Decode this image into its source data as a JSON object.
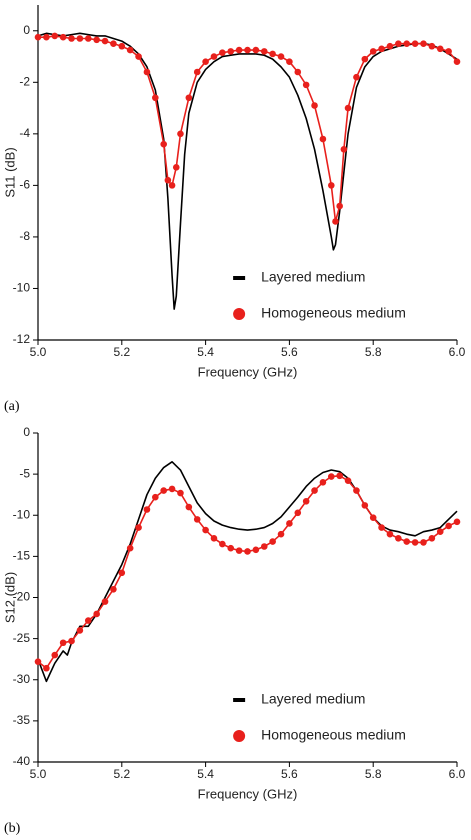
{
  "chart_data": [
    {
      "type": "line",
      "panel_label": "(a)",
      "x_label": "Frequency (GHz)",
      "y_label": "S11 (dB)",
      "xlim": [
        5.0,
        6.0
      ],
      "xticks": [
        {
          "value": 5.0,
          "label": "5.0"
        },
        5.2,
        5.4,
        5.6,
        5.8,
        {
          "value": 6.0,
          "label": "6.0"
        }
      ],
      "ylim": [
        -12,
        1
      ],
      "yticks": [
        0,
        -2,
        -4,
        -6,
        -8,
        -10,
        -12
      ],
      "legend": "lower right",
      "series": [
        {
          "name": "Layered medium",
          "color": "#000000",
          "markers": false,
          "x": [
            5.0,
            5.02,
            5.04,
            5.06,
            5.08,
            5.1,
            5.12,
            5.14,
            5.16,
            5.18,
            5.2,
            5.22,
            5.24,
            5.26,
            5.28,
            5.3,
            5.31,
            5.32,
            5.325,
            5.33,
            5.34,
            5.35,
            5.36,
            5.38,
            5.4,
            5.42,
            5.44,
            5.46,
            5.48,
            5.5,
            5.52,
            5.54,
            5.56,
            5.58,
            5.6,
            5.62,
            5.64,
            5.66,
            5.68,
            5.7,
            5.705,
            5.71,
            5.72,
            5.74,
            5.76,
            5.78,
            5.8,
            5.82,
            5.84,
            5.86,
            5.88,
            5.9,
            5.92,
            5.94,
            5.96,
            5.98,
            6.0
          ],
          "values": [
            -0.2,
            -0.1,
            -0.15,
            -0.2,
            -0.15,
            -0.1,
            -0.15,
            -0.2,
            -0.2,
            -0.3,
            -0.4,
            -0.6,
            -0.9,
            -1.4,
            -2.3,
            -4.2,
            -6.5,
            -9.5,
            -10.8,
            -10.3,
            -7.5,
            -4.8,
            -3.2,
            -2.0,
            -1.5,
            -1.2,
            -1.0,
            -0.95,
            -0.9,
            -0.9,
            -0.9,
            -0.95,
            -1.1,
            -1.4,
            -1.8,
            -2.5,
            -3.4,
            -4.6,
            -6.2,
            -8.0,
            -8.5,
            -8.3,
            -7.0,
            -4.0,
            -2.2,
            -1.4,
            -1.0,
            -0.8,
            -0.7,
            -0.6,
            -0.55,
            -0.5,
            -0.5,
            -0.55,
            -0.7,
            -0.9,
            -1.1
          ]
        },
        {
          "name": "Homogeneous medium",
          "color": "#e8201c",
          "markers": true,
          "x": [
            5.0,
            5.02,
            5.04,
            5.06,
            5.08,
            5.1,
            5.12,
            5.14,
            5.16,
            5.18,
            5.2,
            5.22,
            5.24,
            5.26,
            5.28,
            5.3,
            5.31,
            5.32,
            5.33,
            5.34,
            5.36,
            5.38,
            5.4,
            5.42,
            5.44,
            5.46,
            5.48,
            5.5,
            5.52,
            5.54,
            5.56,
            5.58,
            5.6,
            5.62,
            5.64,
            5.66,
            5.68,
            5.7,
            5.71,
            5.72,
            5.73,
            5.74,
            5.76,
            5.78,
            5.8,
            5.82,
            5.84,
            5.86,
            5.88,
            5.9,
            5.92,
            5.94,
            5.96,
            5.98,
            6.0
          ],
          "values": [
            -0.25,
            -0.25,
            -0.2,
            -0.25,
            -0.3,
            -0.3,
            -0.3,
            -0.35,
            -0.4,
            -0.5,
            -0.6,
            -0.75,
            -1.0,
            -1.6,
            -2.6,
            -4.4,
            -5.8,
            -6.0,
            -5.3,
            -4.0,
            -2.6,
            -1.6,
            -1.2,
            -1.0,
            -0.85,
            -0.8,
            -0.75,
            -0.75,
            -0.75,
            -0.8,
            -0.9,
            -1.0,
            -1.2,
            -1.6,
            -2.1,
            -2.9,
            -4.2,
            -6.0,
            -7.4,
            -6.8,
            -4.6,
            -3.0,
            -1.8,
            -1.1,
            -0.8,
            -0.7,
            -0.6,
            -0.5,
            -0.5,
            -0.5,
            -0.5,
            -0.6,
            -0.7,
            -0.8,
            -1.2
          ]
        }
      ]
    },
    {
      "type": "line",
      "panel_label": "(b)",
      "x_label": "Frequency (GHz)",
      "y_label": "S12 (dB)",
      "xlim": [
        5.0,
        6.0
      ],
      "xticks": [
        {
          "value": 5.0,
          "label": "5.0"
        },
        5.2,
        5.4,
        5.6,
        5.8,
        {
          "value": 6.0,
          "label": "6.0"
        }
      ],
      "ylim": [
        -40,
        0
      ],
      "yticks": [
        0,
        -5,
        -10,
        -15,
        -20,
        -25,
        -30,
        -35,
        -40
      ],
      "legend": "lower right",
      "series": [
        {
          "name": "Layered medium",
          "color": "#000000",
          "markers": false,
          "x": [
            5.0,
            5.02,
            5.04,
            5.06,
            5.07,
            5.08,
            5.1,
            5.12,
            5.14,
            5.16,
            5.18,
            5.2,
            5.22,
            5.24,
            5.26,
            5.28,
            5.3,
            5.32,
            5.34,
            5.36,
            5.38,
            5.4,
            5.42,
            5.44,
            5.46,
            5.48,
            5.5,
            5.52,
            5.54,
            5.56,
            5.58,
            5.6,
            5.62,
            5.64,
            5.66,
            5.68,
            5.7,
            5.72,
            5.74,
            5.76,
            5.78,
            5.8,
            5.82,
            5.84,
            5.86,
            5.88,
            5.9,
            5.92,
            5.94,
            5.96,
            5.98,
            6.0
          ],
          "values": [
            -27.5,
            -30.2,
            -28,
            -26.5,
            -27,
            -25.5,
            -23.5,
            -23.5,
            -22,
            -20,
            -18,
            -16,
            -13.5,
            -10.5,
            -7.5,
            -5.5,
            -4.2,
            -3.5,
            -4.5,
            -6.5,
            -8.5,
            -9.8,
            -10.7,
            -11.2,
            -11.5,
            -11.7,
            -11.8,
            -11.7,
            -11.5,
            -11.0,
            -10.2,
            -9.0,
            -7.8,
            -6.5,
            -5.5,
            -4.8,
            -4.5,
            -4.7,
            -5.5,
            -7.0,
            -8.8,
            -10.3,
            -11.3,
            -11.8,
            -12.0,
            -12.3,
            -12.5,
            -12.0,
            -11.8,
            -11.5,
            -10.5,
            -9.5
          ]
        },
        {
          "name": "Homogeneous medium",
          "color": "#e8201c",
          "markers": true,
          "x": [
            5.0,
            5.02,
            5.04,
            5.06,
            5.08,
            5.1,
            5.12,
            5.14,
            5.16,
            5.18,
            5.2,
            5.22,
            5.24,
            5.26,
            5.28,
            5.3,
            5.32,
            5.34,
            5.36,
            5.38,
            5.4,
            5.42,
            5.44,
            5.46,
            5.48,
            5.5,
            5.52,
            5.54,
            5.56,
            5.58,
            5.6,
            5.62,
            5.64,
            5.66,
            5.68,
            5.7,
            5.72,
            5.74,
            5.76,
            5.78,
            5.8,
            5.82,
            5.84,
            5.86,
            5.88,
            5.9,
            5.92,
            5.94,
            5.96,
            5.98,
            6.0
          ],
          "values": [
            -27.8,
            -28.6,
            -27,
            -25.5,
            -25.3,
            -24,
            -22.8,
            -22,
            -20.5,
            -19,
            -17,
            -14,
            -11.5,
            -9.3,
            -7.8,
            -7.0,
            -6.8,
            -7.3,
            -9,
            -10.5,
            -11.8,
            -12.8,
            -13.5,
            -14.0,
            -14.3,
            -14.4,
            -14.2,
            -13.8,
            -13.2,
            -12.3,
            -11.0,
            -9.7,
            -8.3,
            -7.0,
            -6.0,
            -5.3,
            -5.2,
            -5.8,
            -7.0,
            -8.8,
            -10.3,
            -11.5,
            -12.3,
            -12.8,
            -13.2,
            -13.3,
            -13.3,
            -12.8,
            -12.0,
            -11.3,
            -10.8
          ]
        }
      ]
    }
  ]
}
